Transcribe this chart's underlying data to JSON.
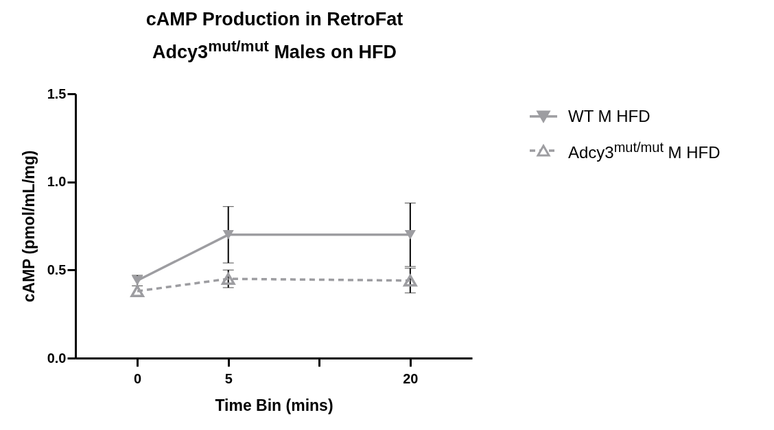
{
  "chart_data": {
    "type": "line",
    "title": "cAMP Production in RetroFat",
    "subtitle": "Adcy3$^{mut/mut}$ Males on HFD",
    "xlabel": "Time Bin (mins)",
    "ylabel": "cAMP (pmol/mL/mg)",
    "categories": [
      "0",
      "5",
      null,
      "20"
    ],
    "series": [
      {
        "name": "WT M HFD",
        "color": "#9d9da1",
        "values": [
          0.44,
          0.7,
          null,
          0.7
        ],
        "errors": [
          0.03,
          0.16,
          null,
          0.18
        ],
        "marker": "triangle",
        "line_style": "solid"
      },
      {
        "name": "Adcy3$^{mut/mut}$ M HFD",
        "color": "#9d9da1",
        "values": [
          0.38,
          0.45,
          null,
          0.44
        ],
        "errors": [
          null,
          0.05,
          null,
          0.07
        ],
        "marker": "triangle",
        "line_style": "dashed"
      }
    ],
    "ylim": [
      0,
      1.5
    ],
    "yticks": [
      {
        "value": 0,
        "label": "0.0"
      },
      0.5,
      {
        "value": 1,
        "label": "1.0"
      },
      1.5
    ],
    "grid": false,
    "legend": "top right"
  }
}
